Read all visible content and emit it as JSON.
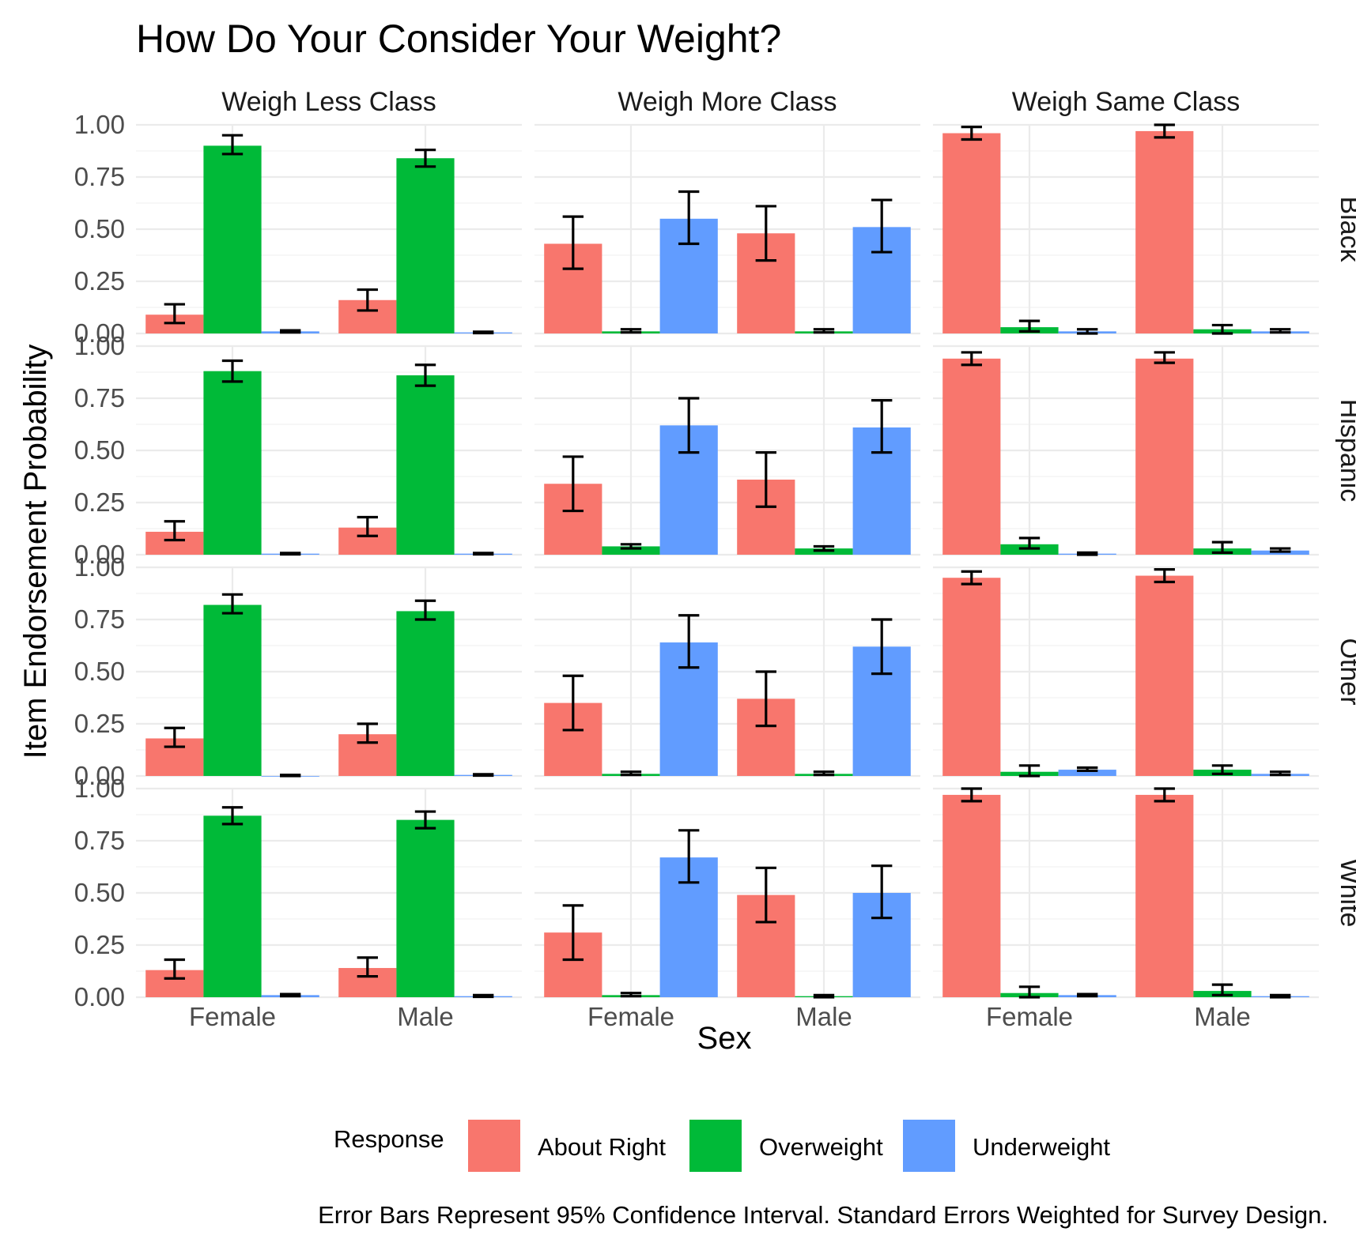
{
  "chart_data": {
    "type": "bar",
    "title": "How Do Your Consider Your Weight?",
    "xlabel": "Sex",
    "ylabel": "Item Endorsement Probability",
    "caption": "Error Bars Represent 95% Confidence Interval. Standard Errors Weighted for Survey Design.",
    "ylim": [
      0,
      1
    ],
    "y_ticks": [
      "0.00",
      "0.25",
      "0.50",
      "0.75",
      "1.00"
    ],
    "categories": [
      "Female",
      "Male"
    ],
    "columns": [
      "Weigh Less Class",
      "Weigh More Class",
      "Weigh Same Class"
    ],
    "rows": [
      "Black",
      "Hispanic",
      "Other",
      "White"
    ],
    "legend": {
      "title": "Response",
      "position": "bottom",
      "items": [
        {
          "name": "About Right",
          "color": "#F8766D"
        },
        {
          "name": "Overweight",
          "color": "#00BA38"
        },
        {
          "name": "Underweight",
          "color": "#619CFF"
        }
      ]
    },
    "error_bars": "95% confidence interval",
    "grid": true,
    "panels": [
      {
        "row": "Black",
        "column": "Weigh Less Class",
        "values": [
          [
            0.09,
            0.9,
            0.01
          ],
          [
            0.16,
            0.84,
            0.005
          ]
        ],
        "lower": [
          [
            0.05,
            0.86,
            0.005
          ],
          [
            0.11,
            0.8,
            0.002
          ]
        ],
        "upper": [
          [
            0.14,
            0.95,
            0.015
          ],
          [
            0.21,
            0.88,
            0.008
          ]
        ]
      },
      {
        "row": "Black",
        "column": "Weigh More Class",
        "values": [
          [
            0.43,
            0.01,
            0.55
          ],
          [
            0.48,
            0.01,
            0.51
          ]
        ],
        "lower": [
          [
            0.31,
            0.005,
            0.43
          ],
          [
            0.35,
            0.005,
            0.39
          ]
        ],
        "upper": [
          [
            0.56,
            0.02,
            0.68
          ],
          [
            0.61,
            0.02,
            0.64
          ]
        ]
      },
      {
        "row": "Black",
        "column": "Weigh Same Class",
        "values": [
          [
            0.96,
            0.03,
            0.01
          ],
          [
            0.97,
            0.02,
            0.01
          ]
        ],
        "lower": [
          [
            0.93,
            0.01,
            0.0
          ],
          [
            0.94,
            0.0,
            0.005
          ]
        ],
        "upper": [
          [
            0.99,
            0.06,
            0.02
          ],
          [
            1.0,
            0.04,
            0.02
          ]
        ]
      },
      {
        "row": "Hispanic",
        "column": "Weigh Less Class",
        "values": [
          [
            0.11,
            0.88,
            0.005
          ],
          [
            0.13,
            0.86,
            0.005
          ]
        ],
        "lower": [
          [
            0.07,
            0.83,
            0.002
          ],
          [
            0.09,
            0.81,
            0.002
          ]
        ],
        "upper": [
          [
            0.16,
            0.93,
            0.008
          ],
          [
            0.18,
            0.91,
            0.008
          ]
        ]
      },
      {
        "row": "Hispanic",
        "column": "Weigh More Class",
        "values": [
          [
            0.34,
            0.04,
            0.62
          ],
          [
            0.36,
            0.03,
            0.61
          ]
        ],
        "lower": [
          [
            0.21,
            0.03,
            0.49
          ],
          [
            0.23,
            0.02,
            0.49
          ]
        ],
        "upper": [
          [
            0.47,
            0.05,
            0.75
          ],
          [
            0.49,
            0.04,
            0.74
          ]
        ]
      },
      {
        "row": "Hispanic",
        "column": "Weigh Same Class",
        "values": [
          [
            0.94,
            0.05,
            0.005
          ],
          [
            0.94,
            0.03,
            0.02
          ]
        ],
        "lower": [
          [
            0.91,
            0.03,
            0.0
          ],
          [
            0.92,
            0.01,
            0.015
          ]
        ],
        "upper": [
          [
            0.97,
            0.08,
            0.01
          ],
          [
            0.97,
            0.06,
            0.03
          ]
        ]
      },
      {
        "row": "Other",
        "column": "Weigh Less Class",
        "values": [
          [
            0.18,
            0.82,
            0.0
          ],
          [
            0.2,
            0.79,
            0.005
          ]
        ],
        "lower": [
          [
            0.14,
            0.78,
            0.0
          ],
          [
            0.16,
            0.75,
            0.002
          ]
        ],
        "upper": [
          [
            0.23,
            0.87,
            0.005
          ],
          [
            0.25,
            0.84,
            0.008
          ]
        ]
      },
      {
        "row": "Other",
        "column": "Weigh More Class",
        "values": [
          [
            0.35,
            0.01,
            0.64
          ],
          [
            0.37,
            0.01,
            0.62
          ]
        ],
        "lower": [
          [
            0.22,
            0.005,
            0.52
          ],
          [
            0.24,
            0.005,
            0.49
          ]
        ],
        "upper": [
          [
            0.48,
            0.02,
            0.77
          ],
          [
            0.5,
            0.02,
            0.75
          ]
        ]
      },
      {
        "row": "Other",
        "column": "Weigh Same Class",
        "values": [
          [
            0.95,
            0.02,
            0.03
          ],
          [
            0.96,
            0.03,
            0.01
          ]
        ],
        "lower": [
          [
            0.92,
            0.0,
            0.025
          ],
          [
            0.93,
            0.01,
            0.005
          ]
        ],
        "upper": [
          [
            0.98,
            0.05,
            0.04
          ],
          [
            0.99,
            0.05,
            0.02
          ]
        ]
      },
      {
        "row": "White",
        "column": "Weigh Less Class",
        "values": [
          [
            0.13,
            0.87,
            0.01
          ],
          [
            0.14,
            0.85,
            0.005
          ]
        ],
        "lower": [
          [
            0.09,
            0.83,
            0.005
          ],
          [
            0.1,
            0.81,
            0.002
          ]
        ],
        "upper": [
          [
            0.18,
            0.91,
            0.015
          ],
          [
            0.19,
            0.89,
            0.01
          ]
        ]
      },
      {
        "row": "White",
        "column": "Weigh More Class",
        "values": [
          [
            0.31,
            0.01,
            0.67
          ],
          [
            0.49,
            0.005,
            0.5
          ]
        ],
        "lower": [
          [
            0.18,
            0.005,
            0.55
          ],
          [
            0.36,
            0.0,
            0.38
          ]
        ],
        "upper": [
          [
            0.44,
            0.02,
            0.8
          ],
          [
            0.62,
            0.01,
            0.63
          ]
        ]
      },
      {
        "row": "White",
        "column": "Weigh Same Class",
        "values": [
          [
            0.97,
            0.02,
            0.01
          ],
          [
            0.97,
            0.03,
            0.005
          ]
        ],
        "lower": [
          [
            0.94,
            0.0,
            0.005
          ],
          [
            0.94,
            0.01,
            0.0
          ]
        ],
        "upper": [
          [
            1.0,
            0.05,
            0.015
          ],
          [
            1.0,
            0.06,
            0.01
          ]
        ]
      }
    ]
  }
}
